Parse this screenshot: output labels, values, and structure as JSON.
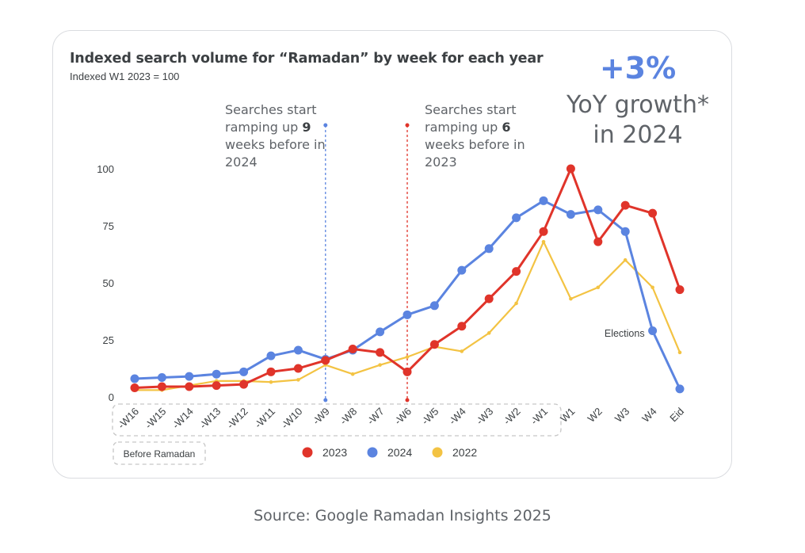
{
  "source": "Source: Google Ramadan Insights 2025",
  "growth": {
    "value": "+3%",
    "line1": "YoY growth*",
    "line2": "in 2024"
  },
  "notes": [
    {
      "pre": "Searches start ramping up ",
      "bold": "9",
      "post": " weeks before in 2024"
    },
    {
      "pre": "Searches start ramping up ",
      "bold": "6",
      "post": " weeks before in 2023"
    }
  ],
  "chart_data": {
    "type": "line",
    "title": "Indexed search volume for “Ramadan” by week for each year",
    "subtitle": "Indexed W1 2023 = 100",
    "categories": [
      "-W16",
      "-W15",
      "-W14",
      "-W13",
      "-W12",
      "-W11",
      "-W10",
      "-W9",
      "-W8",
      "-W7",
      "-W6",
      "-W5",
      "-W4",
      "-W3",
      "-W2",
      "-W1",
      "W1",
      "W2",
      "W3",
      "W4",
      "Eid"
    ],
    "y_ticks": [
      0,
      25,
      50,
      75,
      100
    ],
    "ylim": [
      0,
      100
    ],
    "series": [
      {
        "name": "2023",
        "color": "#e0342a",
        "markers": true,
        "values": [
          4,
          4.5,
          4.5,
          5,
          5.5,
          11,
          12.5,
          16,
          21,
          19.5,
          11,
          23,
          31,
          43,
          55,
          72.5,
          100,
          68,
          84,
          80.5,
          47
        ]
      },
      {
        "name": "2024",
        "color": "#5b84e0",
        "markers": true,
        "values": [
          8,
          8.5,
          9,
          10,
          11,
          18,
          20.5,
          16.5,
          20.5,
          28.5,
          36,
          40,
          55.5,
          65,
          78.5,
          86,
          80,
          82,
          72.5,
          29,
          3.5
        ]
      },
      {
        "name": "2022",
        "color": "#f3c343",
        "markers": false,
        "values": [
          3,
          3,
          5,
          7,
          7,
          6.5,
          7.5,
          14,
          10,
          14,
          17.5,
          22,
          20,
          28,
          41,
          68,
          43,
          48,
          60,
          48,
          19.5
        ]
      }
    ],
    "legend_order": [
      "2023",
      "2024",
      "2022"
    ],
    "legend_position": "bottom",
    "annotations": [
      {
        "text": "Elections",
        "category": "W4"
      }
    ],
    "bracket_label": "Before Ramadan",
    "markers_vlines": [
      "-W9",
      "-W6"
    ]
  }
}
